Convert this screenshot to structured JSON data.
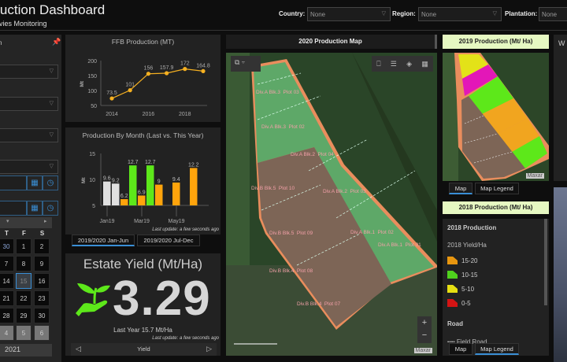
{
  "header": {
    "title": "Production Dashboard",
    "subtitle": "Activies Monitoring"
  },
  "filters": [
    {
      "label": "Country:",
      "value": "None"
    },
    {
      "label": "Region:",
      "value": "None"
    },
    {
      "label": "Plantation:",
      "value": "None"
    }
  ],
  "sidebar": {
    "title": "n",
    "calendar": {
      "day_headers": [
        "T",
        "F",
        "S"
      ],
      "rows": [
        [
          "30",
          "1",
          "2"
        ],
        [
          "7",
          "8",
          "9"
        ],
        [
          "14",
          "15",
          "16"
        ],
        [
          "21",
          "22",
          "23"
        ],
        [
          "28",
          "29",
          "30"
        ],
        [
          "4",
          "5",
          "6"
        ]
      ],
      "selected": "15",
      "year": "2021"
    }
  },
  "ffb_chart": {
    "chart_data": {
      "type": "line",
      "title": "FFB Production (MT)",
      "xlabel": "",
      "ylabel": "Mt",
      "x": [
        2014,
        2015,
        2016,
        2017,
        2018,
        2019
      ],
      "values": [
        73.5,
        101,
        156,
        157.9,
        172,
        164.8
      ],
      "labels": [
        "73.5",
        "101",
        "156",
        "157.9",
        "172",
        "164.8"
      ],
      "xticks": [
        "2014",
        "2016",
        "2018"
      ],
      "yticks": [
        "50",
        "100",
        "150",
        "200"
      ],
      "ylim": [
        50,
        200
      ],
      "color": "#f5b021"
    }
  },
  "month_chart": {
    "chart_data": {
      "type": "bar",
      "title": "Production By Month (Last vs. This Year)",
      "ylabel": "Mt",
      "categories": [
        "Jan19",
        "Feb19",
        "Mar19",
        "Apr19",
        "May19",
        "Jun19"
      ],
      "xticks": [
        "Jan19",
        "Mar19",
        "May19"
      ],
      "yticks": [
        "5",
        "10",
        "15"
      ],
      "ylim": [
        5,
        15
      ],
      "bars": [
        {
          "month": 0,
          "slot": 0,
          "value": 9.6,
          "color": "#e0e0e0"
        },
        {
          "month": 0,
          "slot": 1,
          "value": 9.2,
          "color": "#e0e0e0"
        },
        {
          "month": 1,
          "slot": 0,
          "value": 6.2,
          "color": "#ffa40c"
        },
        {
          "month": 1,
          "slot": 1,
          "value": 12.7,
          "color": "#5de81a"
        },
        {
          "month": 2,
          "slot": 0,
          "value": 6.9,
          "color": "#ffa40c"
        },
        {
          "month": 2,
          "slot": 1,
          "value": 12.7,
          "color": "#5de81a"
        },
        {
          "month": 3,
          "slot": 0,
          "value": 9,
          "color": "#ffa40c"
        },
        {
          "month": 4,
          "slot": 0,
          "value": 9.4,
          "color": "#ffa40c"
        },
        {
          "month": 5,
          "slot": 0,
          "value": 12.2,
          "color": "#ffa40c"
        }
      ]
    },
    "last_update": "Last update: a few seconds ago",
    "tabs": [
      "2019/2020 Jan-Jun",
      "2019/2020 Jul-Dec"
    ]
  },
  "yield": {
    "title": "Estate Yield (Mt/Ha)",
    "value": "3.29",
    "last_year": "Last Year 15.7 Mt/Ha",
    "last_update": "Last update: a few seconds ago",
    "nav_label": "Yield"
  },
  "map2020": {
    "title": "2020 Production Map",
    "attribution": "Maxar",
    "plots": [
      "Div.A Blk.3  Plot 03",
      "Div.A Blk.3  Plot 02",
      "Div.A Blk.2  Plot 04",
      "Div.B Blk.5  Plot 10",
      "Div.A Blk.2  Plot 03",
      "Div.B Blk.5  Plot 09",
      "Div.A Blk.1  Plot 02",
      "Div.B Blk.4  Plot 08",
      "Div.A Blk.1  Plot 01",
      "Div.B Blk.4  Plot 07"
    ],
    "zoom_in": "+",
    "zoom_out": "−"
  },
  "map2019": {
    "title": "2019 Production (Mt/ Ha)",
    "attribution": "Maxar",
    "tabs": [
      "Map",
      "Map Legend"
    ]
  },
  "map2018": {
    "title": "2018 Production (Mt/ Ha)",
    "legend_title": "2018 Production",
    "legend_subtitle": "2018 Yield/Ha",
    "legend": [
      {
        "label": "15-20",
        "color": "#e8960f"
      },
      {
        "label": "10-15",
        "color": "#4fd11d"
      },
      {
        "label": "5-10",
        "color": "#e6df12"
      },
      {
        "label": "0-5",
        "color": "#d41414"
      }
    ],
    "road_title": "Road",
    "road_item": "Field Road",
    "tabs": [
      "Map",
      "Map Legend"
    ]
  },
  "right_panel": {
    "title": "W"
  }
}
